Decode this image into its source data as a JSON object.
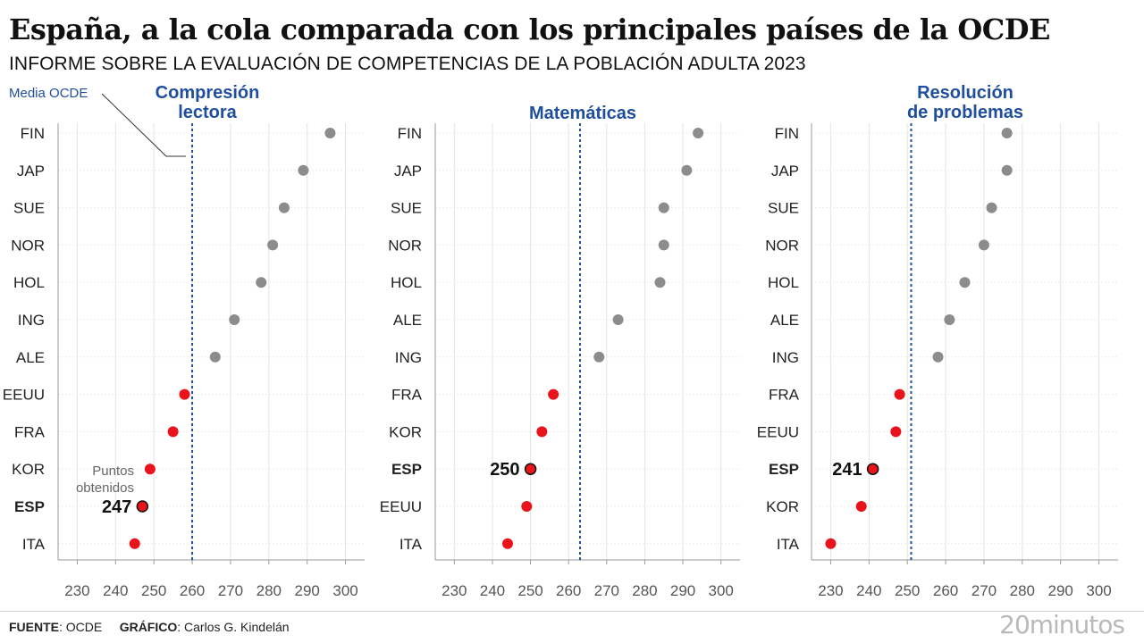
{
  "header": {
    "title": "España, a la cola comparada con los principales países de la OCDE",
    "subtitle": "INFORME SOBRE LA EVALUACIÓN DE COMPETENCIAS DE LA POBLACIÓN ADULTA 2023"
  },
  "annotations": {
    "media_ocde": "Media OCDE",
    "puntos_line1": "Puntos",
    "puntos_line2": "obtenidos"
  },
  "footer": {
    "fuente_label": "FUENTE",
    "fuente_value": ": OCDE",
    "grafico_label": "GRÁFICO",
    "grafico_value": ": Carlos G. Kindelán",
    "brand": "20minutos"
  },
  "colors": {
    "above": "#8c8c8c",
    "below": "#e8131b",
    "highlight_outline": "#111111",
    "mean_line": "#1f4e9c",
    "panel_title": "#1f4e9c"
  },
  "chart_data": [
    {
      "type": "scatter",
      "title": [
        "Compresión",
        "lectora"
      ],
      "xlim": [
        225,
        305
      ],
      "xticks": [
        230,
        240,
        250,
        260,
        270,
        280,
        290,
        300
      ],
      "oecd_mean": 260,
      "highlight": "ESP",
      "highlight_label": "247",
      "grid": true,
      "points": [
        {
          "country": "FIN",
          "value": 296
        },
        {
          "country": "JAP",
          "value": 289
        },
        {
          "country": "SUE",
          "value": 284
        },
        {
          "country": "NOR",
          "value": 281
        },
        {
          "country": "HOL",
          "value": 278
        },
        {
          "country": "ING",
          "value": 271
        },
        {
          "country": "ALE",
          "value": 266
        },
        {
          "country": "EEUU",
          "value": 258
        },
        {
          "country": "FRA",
          "value": 255
        },
        {
          "country": "KOR",
          "value": 249
        },
        {
          "country": "ESP",
          "value": 247
        },
        {
          "country": "ITA",
          "value": 245
        }
      ]
    },
    {
      "type": "scatter",
      "title": [
        "Matemáticas"
      ],
      "xlim": [
        225,
        305
      ],
      "xticks": [
        230,
        240,
        250,
        260,
        270,
        280,
        290,
        300
      ],
      "oecd_mean": 263,
      "highlight": "ESP",
      "highlight_label": "250",
      "grid": true,
      "points": [
        {
          "country": "FIN",
          "value": 294
        },
        {
          "country": "JAP",
          "value": 291
        },
        {
          "country": "SUE",
          "value": 285
        },
        {
          "country": "NOR",
          "value": 285
        },
        {
          "country": "HOL",
          "value": 284
        },
        {
          "country": "ALE",
          "value": 273
        },
        {
          "country": "ING",
          "value": 268
        },
        {
          "country": "FRA",
          "value": 256
        },
        {
          "country": "KOR",
          "value": 253
        },
        {
          "country": "ESP",
          "value": 250
        },
        {
          "country": "EEUU",
          "value": 249
        },
        {
          "country": "ITA",
          "value": 244
        }
      ]
    },
    {
      "type": "scatter",
      "title": [
        "Resolución",
        "de problemas"
      ],
      "xlim": [
        225,
        305
      ],
      "xticks": [
        230,
        240,
        250,
        260,
        270,
        280,
        290,
        300
      ],
      "oecd_mean": 251,
      "highlight": "ESP",
      "highlight_label": "241",
      "grid": true,
      "points": [
        {
          "country": "FIN",
          "value": 276
        },
        {
          "country": "JAP",
          "value": 276
        },
        {
          "country": "SUE",
          "value": 272
        },
        {
          "country": "NOR",
          "value": 270
        },
        {
          "country": "HOL",
          "value": 265
        },
        {
          "country": "ALE",
          "value": 261
        },
        {
          "country": "ING",
          "value": 258
        },
        {
          "country": "FRA",
          "value": 248
        },
        {
          "country": "EEUU",
          "value": 247
        },
        {
          "country": "ESP",
          "value": 241
        },
        {
          "country": "KOR",
          "value": 238
        },
        {
          "country": "ITA",
          "value": 230
        }
      ]
    }
  ]
}
